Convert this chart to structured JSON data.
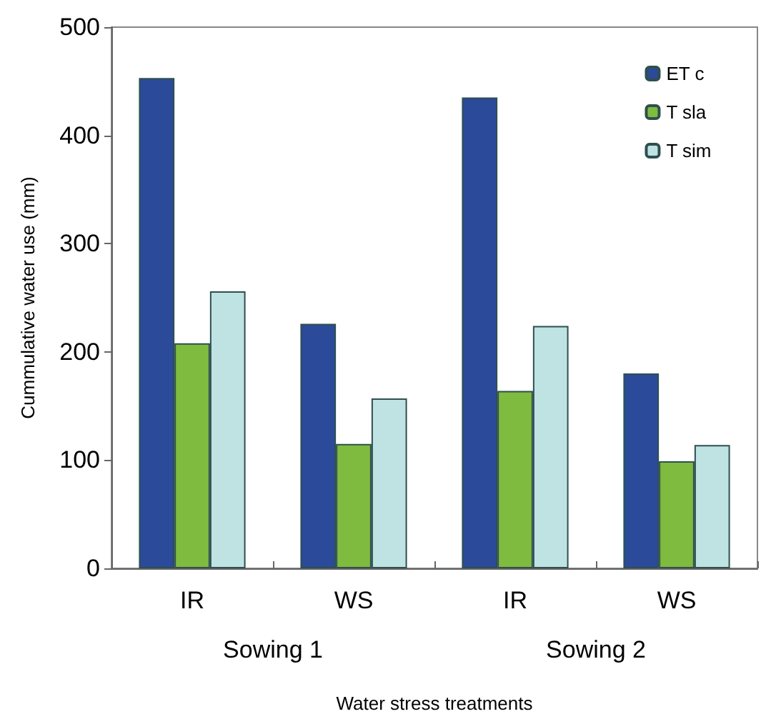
{
  "chart_data": {
    "type": "bar",
    "xlabel": "Water stress treatments",
    "ylabel": "Cummulative water use (mm)",
    "categories": [
      "IR",
      "WS",
      "IR",
      "WS"
    ],
    "series": [
      {
        "name": "ET c",
        "color": "#2b4a9a",
        "values": [
          453,
          226,
          435,
          180
        ]
      },
      {
        "name": "T sla",
        "color": "#7fbb3f",
        "values": [
          208,
          115,
          164,
          99
        ]
      },
      {
        "name": "T sim",
        "color": "#bfe3e3",
        "values": [
          256,
          157,
          224,
          114
        ]
      }
    ],
    "ylim": [
      0,
      500
    ],
    "yticks": [
      0,
      100,
      200,
      300,
      400,
      500
    ],
    "grid": false,
    "legend": "top right",
    "annotations": [
      "Sowing 1",
      "Sowing 2"
    ]
  }
}
